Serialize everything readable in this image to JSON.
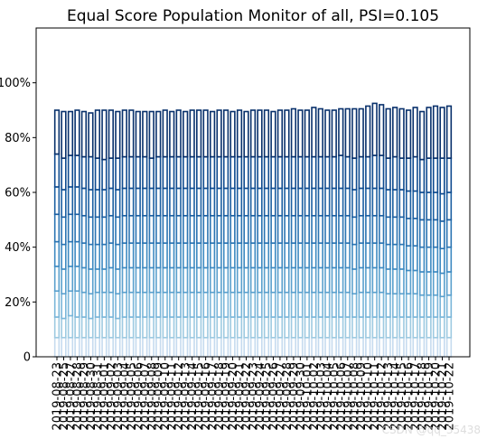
{
  "chart_data": {
    "type": "bar",
    "title": "Equal Score Population Monitor of all, PSI=0.105",
    "xlabel": "",
    "ylabel": "",
    "ylim": [
      0,
      1.2
    ],
    "y_ticks": [
      0,
      0.2,
      0.4,
      0.6,
      0.8,
      1.0
    ],
    "y_tick_labels": [
      "0",
      "20%",
      "40%",
      "60%",
      "80%",
      "100%"
    ],
    "grid": false,
    "legend": "none",
    "stacked": true,
    "palette": [
      "#c6dbef",
      "#9ecae1",
      "#7ab6d9",
      "#5aa0cd",
      "#3e8ac1",
      "#2b74b2",
      "#1c5fa1",
      "#0f4b8f",
      "#08306b"
    ],
    "categories": [
      "2019-08-23",
      "2019-08-25",
      "2019-08-27",
      "2019-08-28",
      "2019-08-29",
      "2019-08-30",
      "2019-08-31",
      "2019-09-01",
      "2019-09-02",
      "2019-09-03",
      "2019-09-04",
      "2019-09-05",
      "2019-09-06",
      "2019-09-07",
      "2019-09-08",
      "2019-09-09",
      "2019-09-10",
      "2019-09-11",
      "2019-09-12",
      "2019-09-13",
      "2019-09-14",
      "2019-09-15",
      "2019-09-16",
      "2019-09-17",
      "2019-09-18",
      "2019-09-19",
      "2019-09-20",
      "2019-09-21",
      "2019-09-22",
      "2019-09-23",
      "2019-09-24",
      "2019-09-25",
      "2019-09-26",
      "2019-09-27",
      "2019-09-28",
      "2019-09-29",
      "2019-09-30",
      "2019-10-01",
      "2019-10-02",
      "2019-10-03",
      "2019-10-04",
      "2019-10-05",
      "2019-10-06",
      "2019-10-07",
      "2019-10-08",
      "2019-10-09",
      "2019-10-10",
      "2019-10-11",
      "2019-10-12",
      "2019-10-13",
      "2019-10-14",
      "2019-10-15",
      "2019-10-16",
      "2019-10-17",
      "2019-10-18",
      "2019-10-19",
      "2019-10-20",
      "2019-10-21",
      "2019-10-22"
    ],
    "series": [
      {
        "values": [
          0.07,
          0.07,
          0.07,
          0.07,
          0.07,
          0.07,
          0.07,
          0.07,
          0.07,
          0.07,
          0.07,
          0.07,
          0.07,
          0.07,
          0.07,
          0.07,
          0.07,
          0.07,
          0.07,
          0.07,
          0.07,
          0.07,
          0.07,
          0.07,
          0.07,
          0.07,
          0.07,
          0.07,
          0.07,
          0.07,
          0.07,
          0.07,
          0.07,
          0.07,
          0.07,
          0.07,
          0.07,
          0.07,
          0.07,
          0.07,
          0.07,
          0.07,
          0.07,
          0.07,
          0.07,
          0.07,
          0.07,
          0.07,
          0.07,
          0.07,
          0.07,
          0.07,
          0.07,
          0.07,
          0.07,
          0.07,
          0.07,
          0.07,
          0.07
        ]
      },
      {
        "values": [
          0.075,
          0.07,
          0.08,
          0.075,
          0.075,
          0.07,
          0.075,
          0.075,
          0.075,
          0.07,
          0.075,
          0.075,
          0.075,
          0.075,
          0.075,
          0.075,
          0.075,
          0.075,
          0.075,
          0.075,
          0.075,
          0.075,
          0.075,
          0.075,
          0.075,
          0.075,
          0.075,
          0.075,
          0.075,
          0.075,
          0.075,
          0.075,
          0.075,
          0.075,
          0.075,
          0.075,
          0.075,
          0.075,
          0.075,
          0.075,
          0.075,
          0.075,
          0.075,
          0.075,
          0.075,
          0.075,
          0.075,
          0.075,
          0.075,
          0.075,
          0.075,
          0.075,
          0.075,
          0.075,
          0.075,
          0.075,
          0.075,
          0.075,
          0.075
        ]
      },
      {
        "values": [
          0.095,
          0.09,
          0.09,
          0.095,
          0.09,
          0.09,
          0.09,
          0.09,
          0.09,
          0.09,
          0.09,
          0.09,
          0.09,
          0.09,
          0.09,
          0.09,
          0.09,
          0.09,
          0.09,
          0.09,
          0.09,
          0.09,
          0.09,
          0.09,
          0.09,
          0.09,
          0.09,
          0.09,
          0.09,
          0.09,
          0.09,
          0.09,
          0.09,
          0.09,
          0.09,
          0.09,
          0.09,
          0.09,
          0.09,
          0.09,
          0.09,
          0.09,
          0.09,
          0.09,
          0.085,
          0.09,
          0.09,
          0.09,
          0.09,
          0.085,
          0.085,
          0.085,
          0.085,
          0.085,
          0.08,
          0.08,
          0.08,
          0.075,
          0.08
        ]
      },
      {
        "values": [
          0.09,
          0.09,
          0.09,
          0.09,
          0.09,
          0.09,
          0.085,
          0.085,
          0.09,
          0.09,
          0.09,
          0.09,
          0.09,
          0.09,
          0.09,
          0.09,
          0.09,
          0.09,
          0.09,
          0.09,
          0.09,
          0.09,
          0.09,
          0.09,
          0.09,
          0.09,
          0.09,
          0.09,
          0.09,
          0.09,
          0.09,
          0.09,
          0.09,
          0.09,
          0.09,
          0.09,
          0.09,
          0.09,
          0.09,
          0.09,
          0.09,
          0.09,
          0.09,
          0.09,
          0.09,
          0.09,
          0.09,
          0.09,
          0.09,
          0.09,
          0.09,
          0.09,
          0.085,
          0.085,
          0.085,
          0.085,
          0.085,
          0.085,
          0.085
        ]
      },
      {
        "values": [
          0.09,
          0.09,
          0.09,
          0.09,
          0.09,
          0.09,
          0.09,
          0.09,
          0.09,
          0.09,
          0.09,
          0.09,
          0.09,
          0.09,
          0.09,
          0.09,
          0.09,
          0.09,
          0.09,
          0.09,
          0.09,
          0.09,
          0.09,
          0.09,
          0.09,
          0.09,
          0.09,
          0.09,
          0.09,
          0.09,
          0.09,
          0.09,
          0.09,
          0.09,
          0.09,
          0.09,
          0.09,
          0.09,
          0.09,
          0.09,
          0.09,
          0.09,
          0.09,
          0.09,
          0.09,
          0.09,
          0.09,
          0.09,
          0.09,
          0.09,
          0.09,
          0.09,
          0.09,
          0.09,
          0.09,
          0.09,
          0.09,
          0.09,
          0.09
        ]
      },
      {
        "values": [
          0.1,
          0.1,
          0.1,
          0.1,
          0.1,
          0.1,
          0.1,
          0.1,
          0.1,
          0.1,
          0.1,
          0.1,
          0.1,
          0.1,
          0.1,
          0.1,
          0.1,
          0.1,
          0.1,
          0.1,
          0.1,
          0.1,
          0.1,
          0.1,
          0.1,
          0.1,
          0.1,
          0.1,
          0.1,
          0.1,
          0.1,
          0.1,
          0.1,
          0.1,
          0.1,
          0.1,
          0.1,
          0.1,
          0.1,
          0.1,
          0.1,
          0.1,
          0.1,
          0.1,
          0.1,
          0.1,
          0.1,
          0.1,
          0.1,
          0.1,
          0.1,
          0.1,
          0.1,
          0.1,
          0.1,
          0.1,
          0.1,
          0.1,
          0.1
        ]
      },
      {
        "values": [
          0.1,
          0.1,
          0.1,
          0.1,
          0.1,
          0.1,
          0.1,
          0.1,
          0.1,
          0.1,
          0.1,
          0.1,
          0.1,
          0.1,
          0.1,
          0.1,
          0.1,
          0.1,
          0.1,
          0.1,
          0.1,
          0.1,
          0.1,
          0.1,
          0.1,
          0.1,
          0.1,
          0.1,
          0.1,
          0.1,
          0.1,
          0.1,
          0.1,
          0.1,
          0.1,
          0.1,
          0.1,
          0.1,
          0.1,
          0.1,
          0.1,
          0.1,
          0.1,
          0.1,
          0.1,
          0.1,
          0.1,
          0.1,
          0.1,
          0.1,
          0.1,
          0.1,
          0.1,
          0.1,
          0.1,
          0.1,
          0.1,
          0.1,
          0.1
        ]
      },
      {
        "values": [
          0.12,
          0.115,
          0.115,
          0.115,
          0.115,
          0.12,
          0.115,
          0.11,
          0.11,
          0.115,
          0.115,
          0.115,
          0.115,
          0.115,
          0.11,
          0.115,
          0.115,
          0.115,
          0.115,
          0.115,
          0.115,
          0.115,
          0.115,
          0.115,
          0.115,
          0.115,
          0.115,
          0.115,
          0.115,
          0.115,
          0.115,
          0.115,
          0.115,
          0.115,
          0.115,
          0.115,
          0.115,
          0.115,
          0.115,
          0.115,
          0.115,
          0.115,
          0.12,
          0.115,
          0.115,
          0.115,
          0.115,
          0.12,
          0.12,
          0.115,
          0.12,
          0.115,
          0.12,
          0.125,
          0.12,
          0.125,
          0.125,
          0.13,
          0.125
        ]
      },
      {
        "values": [
          0.16,
          0.17,
          0.16,
          0.165,
          0.165,
          0.16,
          0.175,
          0.18,
          0.175,
          0.17,
          0.17,
          0.17,
          0.165,
          0.165,
          0.17,
          0.165,
          0.17,
          0.165,
          0.17,
          0.165,
          0.17,
          0.17,
          0.17,
          0.165,
          0.17,
          0.17,
          0.165,
          0.17,
          0.165,
          0.17,
          0.17,
          0.17,
          0.165,
          0.17,
          0.17,
          0.175,
          0.17,
          0.17,
          0.18,
          0.175,
          0.17,
          0.17,
          0.17,
          0.175,
          0.18,
          0.175,
          0.185,
          0.19,
          0.185,
          0.18,
          0.18,
          0.18,
          0.175,
          0.18,
          0.175,
          0.185,
          0.19,
          0.185,
          0.19
        ]
      }
    ]
  },
  "watermark": "CSDN @qq_35438"
}
